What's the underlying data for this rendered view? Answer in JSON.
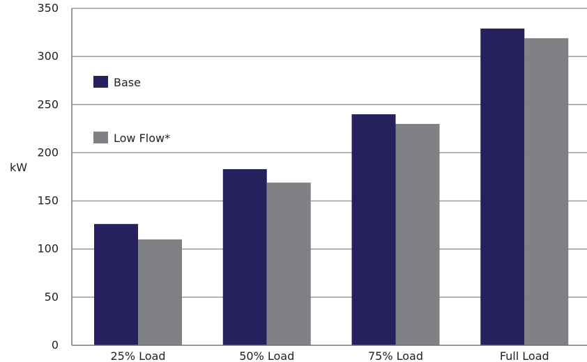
{
  "chart_data": {
    "type": "bar",
    "title": "",
    "xlabel": "",
    "ylabel": "kW",
    "ylim": [
      0,
      350
    ],
    "yticks": [
      0,
      50,
      100,
      150,
      200,
      250,
      300,
      350
    ],
    "categories": [
      "25% Load",
      "50% Load",
      "75% Load",
      "Full Load"
    ],
    "series": [
      {
        "name": "Base",
        "color": "#26215e",
        "values": [
          126,
          183,
          240,
          329
        ]
      },
      {
        "name": "Low Flow*",
        "color": "#808184",
        "values": [
          110,
          169,
          230,
          319
        ]
      }
    ],
    "grid": true,
    "legend_position": "top-left"
  }
}
